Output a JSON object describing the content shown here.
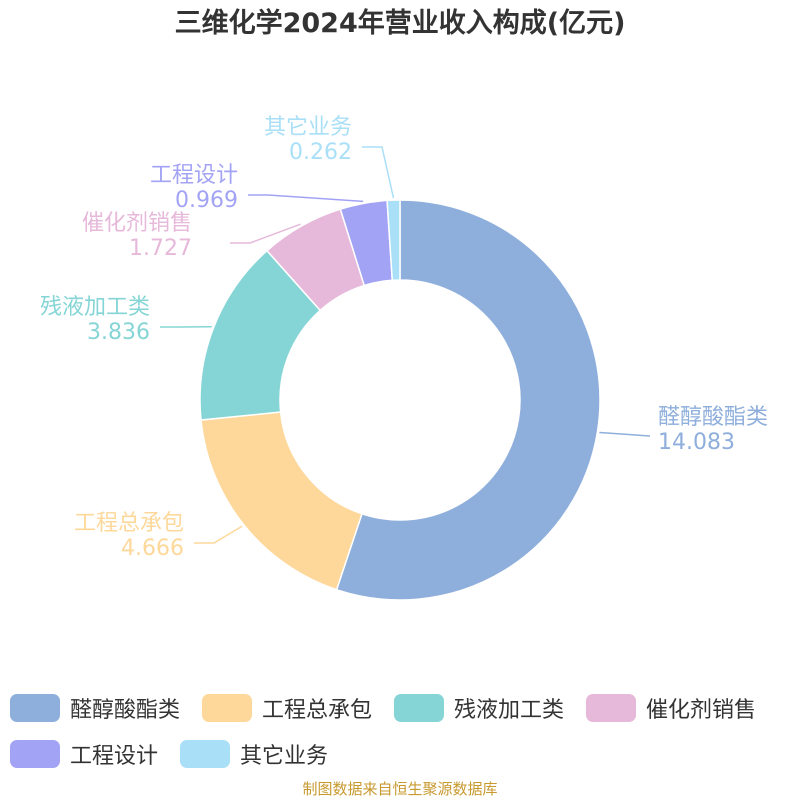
{
  "chart_data": {
    "type": "pie",
    "title": "三维化学2024年营业收入构成(亿元)",
    "categories": [
      "醛醇酸酯类",
      "工程总承包",
      "残液加工类",
      "催化剂销售",
      "工程设计",
      "其它业务"
    ],
    "values": [
      14.083,
      4.666,
      3.836,
      1.727,
      0.969,
      0.262
    ],
    "value_labels": [
      "14.083",
      "4.666",
      "3.836",
      "1.727",
      "0.969",
      "0.262"
    ],
    "colors": [
      "#8eaedb",
      "#fdd89a",
      "#86d5d6",
      "#e6b8da",
      "#a3a3f5",
      "#a9dff7"
    ],
    "donut": true,
    "legend_position": "bottom"
  },
  "source": "制图数据来自恒生聚源数据库"
}
